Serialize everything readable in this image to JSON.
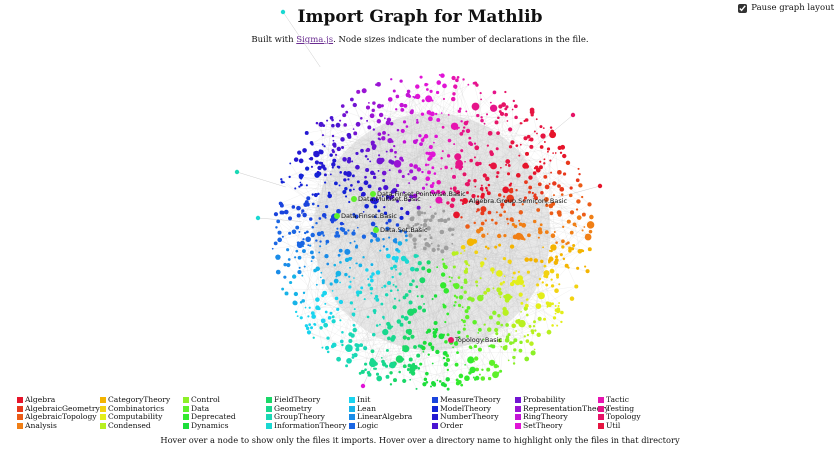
{
  "header": {
    "title": "Import Graph for Mathlib",
    "subtitle_before": "Built with ",
    "subtitle_link": "Sigma.js",
    "subtitle_after": ". Node sizes indicate the number of declarations in the file."
  },
  "pause_layout": {
    "label": "Pause graph layout",
    "checked": true
  },
  "node_labels": [
    "Data.Finset.Pointwise.Basic",
    "Data.Multiset.Basic",
    "Data.Finset.Basic",
    "Data.Set.Basic",
    "Algebra.Group.Semiconj.Basic",
    "Topology.Basic"
  ],
  "directories": [
    {
      "name": "Algebra",
      "color": "#e6142a"
    },
    {
      "name": "AlgebraicGeometry",
      "color": "#e8391c"
    },
    {
      "name": "AlgebraicTopology",
      "color": "#ec5c17"
    },
    {
      "name": "Analysis",
      "color": "#f07f16"
    },
    {
      "name": "CategoryTheory",
      "color": "#f4b400"
    },
    {
      "name": "Combinatorics",
      "color": "#f2d211"
    },
    {
      "name": "Computability",
      "color": "#e3ee1a"
    },
    {
      "name": "Condensed",
      "color": "#b8f020"
    },
    {
      "name": "Control",
      "color": "#8cf028"
    },
    {
      "name": "Data",
      "color": "#5ef02a"
    },
    {
      "name": "Deprecated",
      "color": "#33ea2e"
    },
    {
      "name": "Dynamics",
      "color": "#1cde3a"
    },
    {
      "name": "FieldTheory",
      "color": "#1ad868"
    },
    {
      "name": "Geometry",
      "color": "#18d88f"
    },
    {
      "name": "GroupTheory",
      "color": "#1ad8b5"
    },
    {
      "name": "InformationTheory",
      "color": "#1ad8d2"
    },
    {
      "name": "Init",
      "color": "#1ad4ef"
    },
    {
      "name": "Lean",
      "color": "#17b3e8"
    },
    {
      "name": "LinearAlgebra",
      "color": "#1a8ce8"
    },
    {
      "name": "Logic",
      "color": "#1a66e3"
    },
    {
      "name": "MeasureTheory",
      "color": "#1a44dd"
    },
    {
      "name": "ModelTheory",
      "color": "#1424d6"
    },
    {
      "name": "NumberTheory",
      "color": "#2418d2"
    },
    {
      "name": "Order",
      "color": "#4a14d2"
    },
    {
      "name": "Probability",
      "color": "#7214d2"
    },
    {
      "name": "RepresentationTheory",
      "color": "#9a14d4"
    },
    {
      "name": "RingTheory",
      "color": "#c414d6"
    },
    {
      "name": "SetTheory",
      "color": "#e014d6"
    },
    {
      "name": "Tactic",
      "color": "#e614b0"
    },
    {
      "name": "Testing",
      "color": "#e6148a"
    },
    {
      "name": "Topology",
      "color": "#e61466"
    },
    {
      "name": "Util",
      "color": "#e61440"
    }
  ],
  "footer_text": "Hover over a node to show only the files it imports. Hover over a directory name to highlight only the files in that directory"
}
